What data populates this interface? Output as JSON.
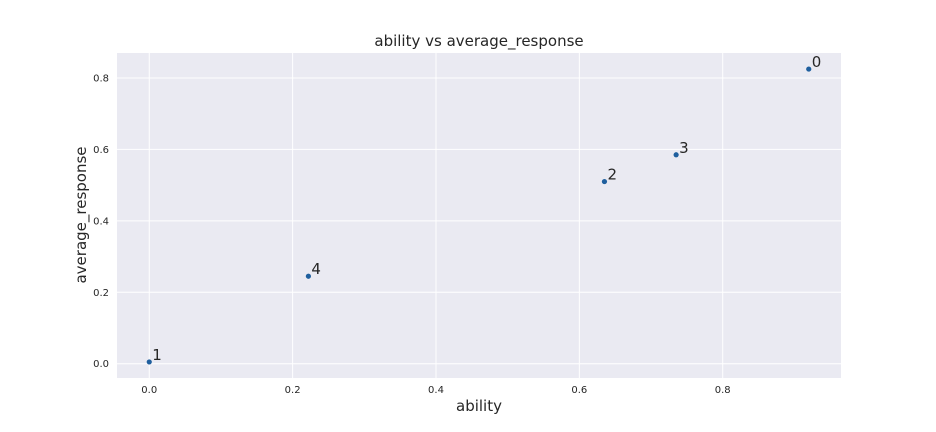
{
  "chart_data": {
    "type": "scatter",
    "title": "ability vs average_response",
    "xlabel": "ability",
    "ylabel": "average_response",
    "xlim": [
      -0.045,
      0.965
    ],
    "ylim": [
      -0.04,
      0.87
    ],
    "xticks": [
      0.0,
      0.2,
      0.4,
      0.6,
      0.8
    ],
    "yticks": [
      0.0,
      0.2,
      0.4,
      0.6,
      0.8
    ],
    "xtick_labels": [
      "0.0",
      "0.2",
      "0.4",
      "0.6",
      "0.8"
    ],
    "ytick_labels": [
      "0.0",
      "0.2",
      "0.4",
      "0.6",
      "0.8"
    ],
    "grid": true,
    "colors": {
      "background": "#eaeaf2",
      "point": "#1f5f9e",
      "grid": "#ffffff"
    },
    "points": [
      {
        "label": "0",
        "x": 0.92,
        "y": 0.825
      },
      {
        "label": "1",
        "x": 0.0,
        "y": 0.005
      },
      {
        "label": "2",
        "x": 0.635,
        "y": 0.51
      },
      {
        "label": "3",
        "x": 0.735,
        "y": 0.585
      },
      {
        "label": "4",
        "x": 0.222,
        "y": 0.245
      }
    ]
  }
}
